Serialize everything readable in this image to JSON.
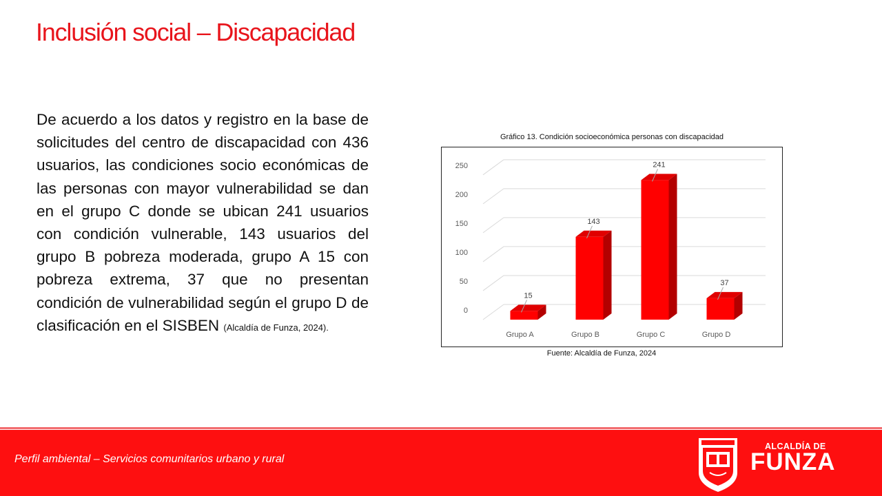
{
  "slide": {
    "title": "Inclusión social – Discapacidad",
    "body": "De acuerdo a los datos y registro en la base de solicitudes del centro de discapacidad con 436 usuarios, las condiciones socio económicas de las personas con mayor vulnerabilidad se dan en el grupo C donde se ubican 241 usuarios con condición vulnerable, 143 usuarios del grupo B pobreza moderada, grupo A 15 con pobreza extrema, 37 que no presentan condición de vulnerabilidad según el grupo D de clasificación en el SISBEN",
    "citation": "(Alcaldía de Funza, 2024)."
  },
  "chart_data": {
    "type": "bar",
    "title": "Gráfico 13. Condición socioeconómica personas con discapacidad",
    "source": "Fuente: Alcaldía de Funza, 2024",
    "categories": [
      "Grupo A",
      "Grupo B",
      "Grupo C",
      "Grupo D"
    ],
    "values": [
      15,
      143,
      241,
      37
    ],
    "yticks": [
      0,
      50,
      100,
      150,
      200,
      250
    ],
    "ylim": [
      0,
      270
    ],
    "xlabel": "",
    "ylabel": "",
    "grid": true,
    "legend": "none",
    "bar_color": "#ff0000",
    "bar_side_color": "#b30000",
    "bar_top_color": "#e00000"
  },
  "footer": {
    "text": "Perfil ambiental – Servicios comunitarios urbano y rural",
    "brand_small": "ALCALDÍA DE",
    "brand_big": "FUNZA",
    "background": "#fe0f10"
  },
  "icons": {
    "crest": "funza-coat-of-arms-icon"
  }
}
